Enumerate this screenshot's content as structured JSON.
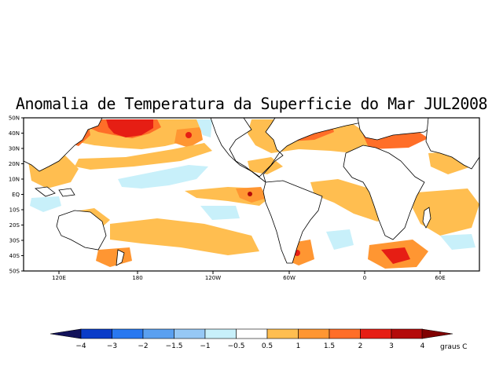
{
  "title": "Anomalia de Temperatura da Superficie do Mar JUL2008",
  "lat_labels": [
    "50N",
    "40N",
    "30N",
    "20N",
    "10N",
    "EQ",
    "10S",
    "20S",
    "30S",
    "40S",
    "50S"
  ],
  "lon_labels": [
    "120E",
    "180",
    "120W",
    "60W",
    "0",
    "60E"
  ],
  "colorbar": {
    "unit_label": "graus C",
    "tick_labels": [
      "−4",
      "−3",
      "−2",
      "−1.5",
      "−1",
      "−0.5",
      "0.5",
      "1",
      "1.5",
      "2",
      "3",
      "4"
    ],
    "colors": [
      "#1c1c8c",
      "#0a3cc8",
      "#2878f0",
      "#5aa0f0",
      "#96c8f5",
      "#c8f0fa",
      "#ffffff",
      "#ffbe50",
      "#ff9632",
      "#ff6e28",
      "#e61e14",
      "#b40a0a",
      "#780a0a"
    ],
    "neg_arrow_color": "#12125a",
    "pos_arrow_color": "#800000"
  }
}
